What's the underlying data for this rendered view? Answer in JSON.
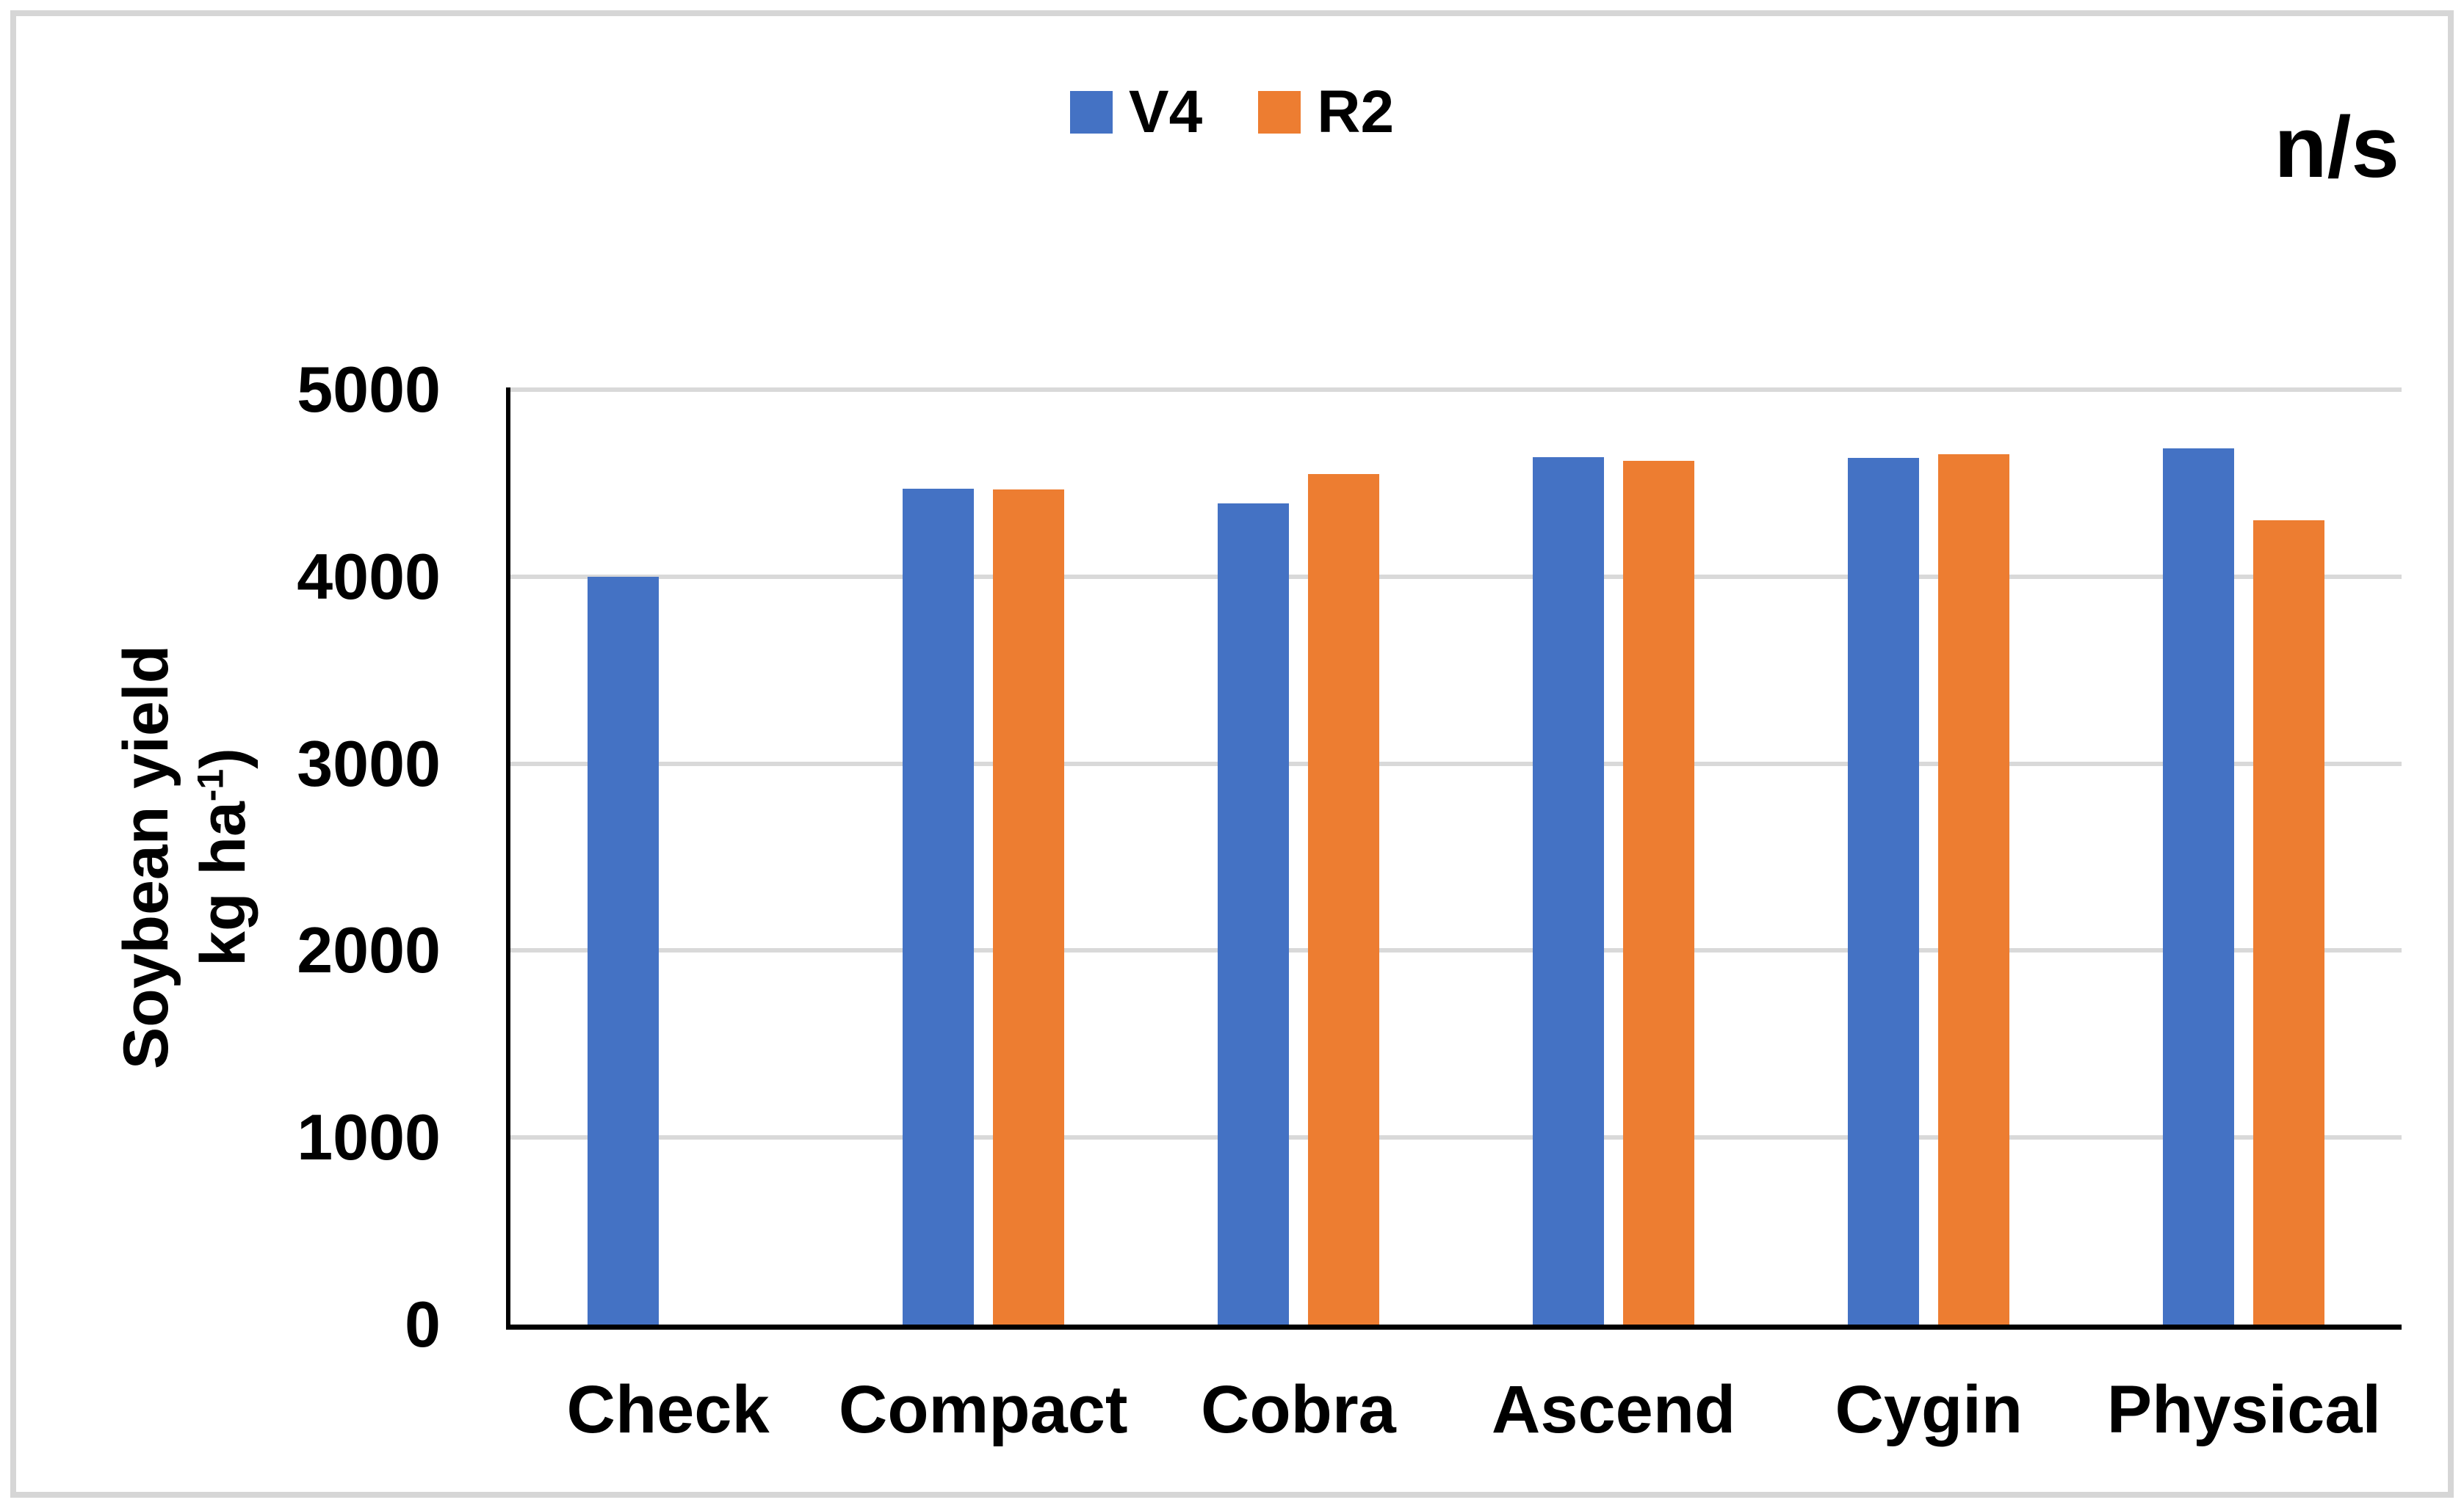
{
  "figure": {
    "note": "n/s",
    "background": "#FFFFFF",
    "border_color": "#D6D6D6"
  },
  "legend": {
    "items": [
      {
        "label": "V4",
        "color": "#4472C4"
      },
      {
        "label": "R2",
        "color": "#ED7D31"
      }
    ]
  },
  "y_axis_title": {
    "line1": "Soybean yield",
    "unit_prefix": "kg ha",
    "unit_sup": "-1",
    "unit_suffix": ")"
  },
  "chart_data": {
    "type": "bar",
    "title": "",
    "annotation": "n/s",
    "categories": [
      "Check",
      "Compact",
      "Cobra",
      "Ascend",
      "Cygin",
      "Physical"
    ],
    "series": [
      {
        "name": "V4",
        "color": "#4472C4",
        "values": [
          4000,
          4470,
          4390,
          4640,
          4635,
          4685
        ]
      },
      {
        "name": "R2",
        "color": "#ED7D31",
        "values": [
          null,
          4465,
          4550,
          4620,
          4655,
          4300
        ]
      }
    ],
    "xlabel": "",
    "ylabel": "Soybean yield kg ha-1)",
    "ylim": [
      0,
      5000
    ],
    "yticks": [
      0,
      1000,
      2000,
      3000,
      4000,
      5000
    ],
    "grid": true,
    "gridline_color": "#D9D9D9",
    "axis_color": "#000000",
    "legend_position": "top-center"
  }
}
